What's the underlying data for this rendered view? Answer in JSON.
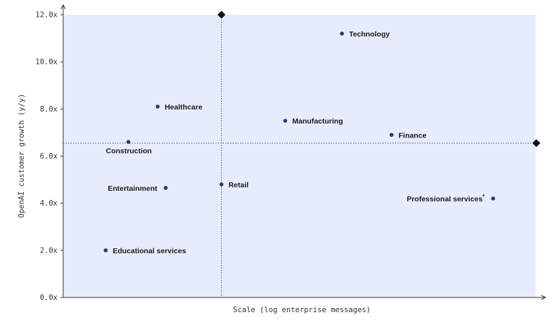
{
  "chart_data": {
    "type": "scatter",
    "xlabel": "Scale (log enterprise messages)",
    "ylabel": "OpenAI customer growth (y/y)",
    "ylim": [
      0,
      12
    ],
    "xlim": [
      0,
      1
    ],
    "y_ticks": [
      "0.0x",
      "2.0x",
      "4.0x",
      "6.0x",
      "8.0x",
      "10.0x",
      "12.0x"
    ],
    "x_ticks_shown": false,
    "grid": false,
    "reference_lines": {
      "x": 0.335,
      "y": 6.55
    },
    "colors": {
      "plot_bg": "#e6ecfb",
      "point": "#223c78",
      "ref_line": "#555555",
      "marker": "#111111"
    },
    "points": [
      {
        "label": "Technology",
        "x": 0.59,
        "y": 11.2,
        "label_pos": "right"
      },
      {
        "label": "Healthcare",
        "x": 0.2,
        "y": 8.1,
        "label_pos": "right"
      },
      {
        "label": "Manufacturing",
        "x": 0.47,
        "y": 7.5,
        "label_pos": "right"
      },
      {
        "label": "Finance",
        "x": 0.695,
        "y": 6.9,
        "label_pos": "right"
      },
      {
        "label": "Construction",
        "x": 0.138,
        "y": 6.6,
        "label_pos": "below"
      },
      {
        "label": "Retail",
        "x": 0.335,
        "y": 4.8,
        "label_pos": "right"
      },
      {
        "label": "Entertainment",
        "x": 0.217,
        "y": 4.65,
        "label_pos": "left"
      },
      {
        "label": "Professional services",
        "x": 0.91,
        "y": 4.2,
        "label_pos": "left",
        "superscript": "*"
      },
      {
        "label": "Educational services",
        "x": 0.09,
        "y": 2.0,
        "label_pos": "right"
      }
    ]
  }
}
